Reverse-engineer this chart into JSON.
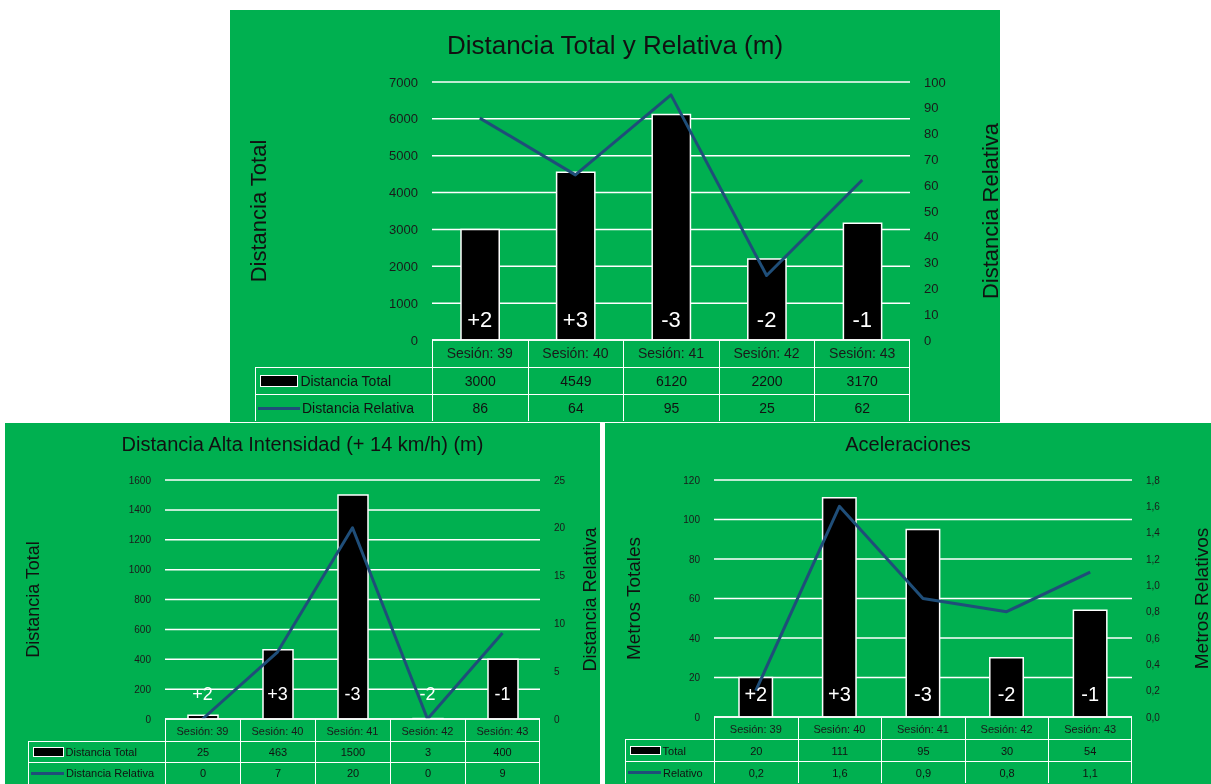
{
  "chart_data": [
    {
      "type": "bar",
      "title": "Distancia Total y Relativa (m)",
      "ylabel": "Distancia Total",
      "y2label": "Distancia Relativa",
      "categories": [
        "Sesión: 39",
        "Sesión: 40",
        "Sesión: 41",
        "Sesión: 42",
        "Sesión: 43"
      ],
      "series": [
        {
          "name": "Distancia Total",
          "color": "#000000",
          "values": [
            3000,
            4549,
            6120,
            2200,
            3170
          ]
        },
        {
          "name": "Distancia Relativa",
          "type": "line",
          "axis": "y2",
          "color": "#1f4e79",
          "values": [
            86,
            64,
            95,
            25,
            62
          ]
        }
      ],
      "ylim": [
        0,
        7000
      ],
      "yticks": [
        0,
        1000,
        2000,
        3000,
        4000,
        5000,
        6000,
        7000
      ],
      "y2lim": [
        0,
        100
      ],
      "y2ticks": [
        0,
        10,
        20,
        30,
        40,
        50,
        60,
        70,
        80,
        90,
        100
      ],
      "grid": "y",
      "legend": "bottom",
      "data_labels": true,
      "annotations": [
        "+2",
        "+3",
        "-3",
        "-2",
        "-1"
      ]
    },
    {
      "type": "bar",
      "title": "Distancia Alta Intensidad (+ 14 km/h) (m)",
      "ylabel": "Distancia Total",
      "y2label": "Distancia Relativa",
      "categories": [
        "Sesión: 39",
        "Sesión: 40",
        "Sesión: 41",
        "Sesión: 42",
        "Sesión: 43"
      ],
      "series": [
        {
          "name": "Distancia Total",
          "color": "#000000",
          "values": [
            25,
            463,
            1500,
            3,
            400
          ]
        },
        {
          "name": "Distancia Relativa",
          "type": "line",
          "axis": "y2",
          "color": "#1f4e79",
          "values": [
            0,
            7,
            20,
            0,
            9
          ]
        }
      ],
      "ylim": [
        0,
        1600
      ],
      "yticks": [
        0,
        200,
        400,
        600,
        800,
        1000,
        1200,
        1400,
        1600
      ],
      "y2lim": [
        0,
        25
      ],
      "y2ticks": [
        0,
        5,
        10,
        15,
        20,
        25
      ],
      "grid": "y",
      "legend": "bottom",
      "data_labels": true,
      "annotations": [
        "+2",
        "+3",
        "-3",
        "-2",
        "-1"
      ]
    },
    {
      "type": "bar",
      "title": "Aceleraciones",
      "ylabel": "Metros Totales",
      "y2label": "Metros Relativos",
      "categories": [
        "Sesión: 39",
        "Sesión: 40",
        "Sesión: 41",
        "Sesión: 42",
        "Sesión: 43"
      ],
      "series": [
        {
          "name": "Total",
          "color": "#000000",
          "values": [
            20,
            111,
            95,
            30,
            54
          ],
          "value_labels": [
            "20",
            "111",
            "95",
            "30",
            "54"
          ]
        },
        {
          "name": "Relativo",
          "type": "line",
          "axis": "y2",
          "color": "#1f4e79",
          "values": [
            0.2,
            1.6,
            0.9,
            0.8,
            1.1
          ],
          "value_labels": [
            "0,2",
            "1,6",
            "0,9",
            "0,8",
            "1,1"
          ]
        }
      ],
      "ylim": [
        0,
        120
      ],
      "yticks": [
        0,
        20,
        40,
        60,
        80,
        100,
        120
      ],
      "y2lim": [
        0,
        1.8
      ],
      "y2ticks": [
        {
          "value": 0,
          "label": "0,0"
        },
        {
          "value": 0.2,
          "label": "0,2"
        },
        {
          "value": 0.4,
          "label": "0,4"
        },
        {
          "value": 0.6,
          "label": "0,6"
        },
        {
          "value": 0.8,
          "label": "0,8"
        },
        {
          "value": 1,
          "label": "1,0"
        },
        {
          "value": 1.2,
          "label": "1,2"
        },
        {
          "value": 1.4,
          "label": "1,4"
        },
        {
          "value": 1.6,
          "label": "1,6"
        },
        {
          "value": 1.8,
          "label": "1,8"
        }
      ],
      "grid": "y",
      "legend": "bottom",
      "annotations": [
        "+2",
        "+3",
        "-3",
        "-2",
        "-1"
      ]
    }
  ]
}
